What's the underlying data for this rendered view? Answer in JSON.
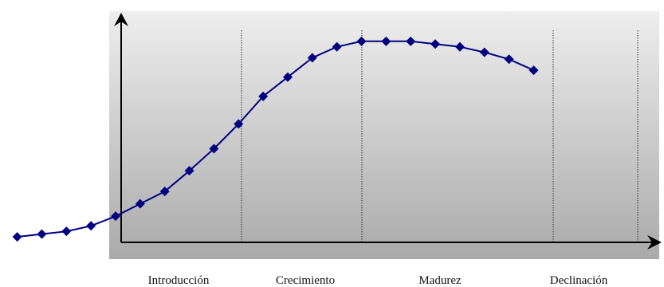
{
  "chart_data": {
    "type": "line",
    "title": "",
    "xlabel": "",
    "ylabel": "",
    "stage_labels": [
      "Introducción",
      "Crecimiento",
      "Madurez",
      "Declinación"
    ],
    "x": [
      -4,
      -3,
      -2,
      -1,
      0,
      1,
      2,
      3,
      4,
      5,
      6,
      7,
      8,
      9,
      10,
      11,
      12,
      13,
      14,
      15,
      16,
      17
    ],
    "series": [
      {
        "name": "",
        "values": [
          3,
          5,
          7,
          11,
          18,
          27,
          36,
          51,
          67,
          85,
          105,
          119,
          133,
          141,
          145,
          145,
          145,
          143,
          141,
          137,
          132,
          124
        ]
      }
    ],
    "xlim": [
      -4.7,
      22.3
    ],
    "ylim": [
      -1,
      175
    ],
    "grid": false,
    "colors": {
      "line": "#000080",
      "marker": "#000080",
      "plot_bg_top": "#eeeeee",
      "plot_bg_bottom": "#aaaaaa",
      "axis": "#000000",
      "divider": "#333333"
    }
  }
}
